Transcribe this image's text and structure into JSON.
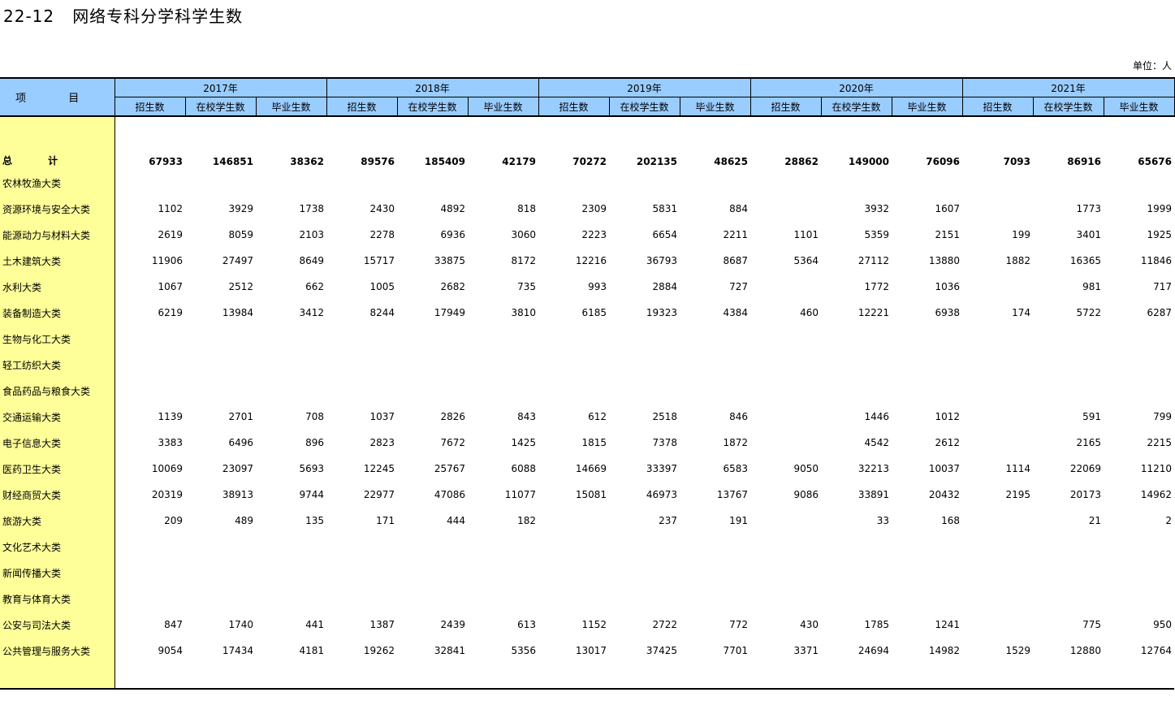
{
  "title": "22-12   网络专科分学科学生数",
  "unit": "单位：人",
  "header": {
    "item_label": "项 目",
    "years": [
      "2017年",
      "2018年",
      "2019年",
      "2020年",
      "2021年"
    ],
    "sub_columns": [
      "招生数",
      "在校学生数",
      "毕业生数"
    ]
  },
  "rows": [
    {
      "label": "总 计",
      "bold": true,
      "values": [
        "67933",
        "146851",
        "38362",
        "89576",
        "185409",
        "42179",
        "70272",
        "202135",
        "48625",
        "28862",
        "149000",
        "76096",
        "7093",
        "86916",
        "65676"
      ]
    },
    {
      "label": "农林牧渔大类",
      "values": [
        "",
        "",
        "",
        "",
        "",
        "",
        "",
        "",
        "",
        "",
        "",
        "",
        "",
        "",
        ""
      ]
    },
    {
      "label": "资源环境与安全大类",
      "values": [
        "1102",
        "3929",
        "1738",
        "2430",
        "4892",
        "818",
        "2309",
        "5831",
        "884",
        "",
        "3932",
        "1607",
        "",
        "1773",
        "1999"
      ]
    },
    {
      "label": "能源动力与材料大类",
      "values": [
        "2619",
        "8059",
        "2103",
        "2278",
        "6936",
        "3060",
        "2223",
        "6654",
        "2211",
        "1101",
        "5359",
        "2151",
        "199",
        "3401",
        "1925"
      ]
    },
    {
      "label": "土木建筑大类",
      "values": [
        "11906",
        "27497",
        "8649",
        "15717",
        "33875",
        "8172",
        "12216",
        "36793",
        "8687",
        "5364",
        "27112",
        "13880",
        "1882",
        "16365",
        "11846"
      ]
    },
    {
      "label": "水利大类",
      "values": [
        "1067",
        "2512",
        "662",
        "1005",
        "2682",
        "735",
        "993",
        "2884",
        "727",
        "",
        "1772",
        "1036",
        "",
        "981",
        "717"
      ]
    },
    {
      "label": "装备制造大类",
      "values": [
        "6219",
        "13984",
        "3412",
        "8244",
        "17949",
        "3810",
        "6185",
        "19323",
        "4384",
        "460",
        "12221",
        "6938",
        "174",
        "5722",
        "6287"
      ]
    },
    {
      "label": "生物与化工大类",
      "values": [
        "",
        "",
        "",
        "",
        "",
        "",
        "",
        "",
        "",
        "",
        "",
        "",
        "",
        "",
        ""
      ]
    },
    {
      "label": "轻工纺织大类",
      "values": [
        "",
        "",
        "",
        "",
        "",
        "",
        "",
        "",
        "",
        "",
        "",
        "",
        "",
        "",
        ""
      ]
    },
    {
      "label": "食品药品与粮食大类",
      "values": [
        "",
        "",
        "",
        "",
        "",
        "",
        "",
        "",
        "",
        "",
        "",
        "",
        "",
        "",
        ""
      ]
    },
    {
      "label": "交通运输大类",
      "values": [
        "1139",
        "2701",
        "708",
        "1037",
        "2826",
        "843",
        "612",
        "2518",
        "846",
        "",
        "1446",
        "1012",
        "",
        "591",
        "799"
      ]
    },
    {
      "label": "电子信息大类",
      "values": [
        "3383",
        "6496",
        "896",
        "2823",
        "7672",
        "1425",
        "1815",
        "7378",
        "1872",
        "",
        "4542",
        "2612",
        "",
        "2165",
        "2215"
      ]
    },
    {
      "label": "医药卫生大类",
      "values": [
        "10069",
        "23097",
        "5693",
        "12245",
        "25767",
        "6088",
        "14669",
        "33397",
        "6583",
        "9050",
        "32213",
        "10037",
        "1114",
        "22069",
        "11210"
      ]
    },
    {
      "label": "财经商贸大类",
      "values": [
        "20319",
        "38913",
        "9744",
        "22977",
        "47086",
        "11077",
        "15081",
        "46973",
        "13767",
        "9086",
        "33891",
        "20432",
        "2195",
        "20173",
        "14962"
      ]
    },
    {
      "label": "旅游大类",
      "values": [
        "209",
        "489",
        "135",
        "171",
        "444",
        "182",
        "",
        "237",
        "191",
        "",
        "33",
        "168",
        "",
        "21",
        "2"
      ]
    },
    {
      "label": "文化艺术大类",
      "values": [
        "",
        "",
        "",
        "",
        "",
        "",
        "",
        "",
        "",
        "",
        "",
        "",
        "",
        "",
        ""
      ]
    },
    {
      "label": "新闻传播大类",
      "values": [
        "",
        "",
        "",
        "",
        "",
        "",
        "",
        "",
        "",
        "",
        "",
        "",
        "",
        "",
        ""
      ]
    },
    {
      "label": "教育与体育大类",
      "values": [
        "",
        "",
        "",
        "",
        "",
        "",
        "",
        "",
        "",
        "",
        "",
        "",
        "",
        "",
        ""
      ]
    },
    {
      "label": "公安与司法大类",
      "values": [
        "847",
        "1740",
        "441",
        "1387",
        "2439",
        "613",
        "1152",
        "2722",
        "772",
        "430",
        "1785",
        "1241",
        "",
        "775",
        "950"
      ]
    },
    {
      "label": "公共管理与服务大类",
      "values": [
        "9054",
        "17434",
        "4181",
        "19262",
        "32841",
        "5356",
        "13017",
        "37425",
        "7701",
        "3371",
        "24694",
        "14982",
        "1529",
        "12880",
        "12764"
      ]
    }
  ]
}
